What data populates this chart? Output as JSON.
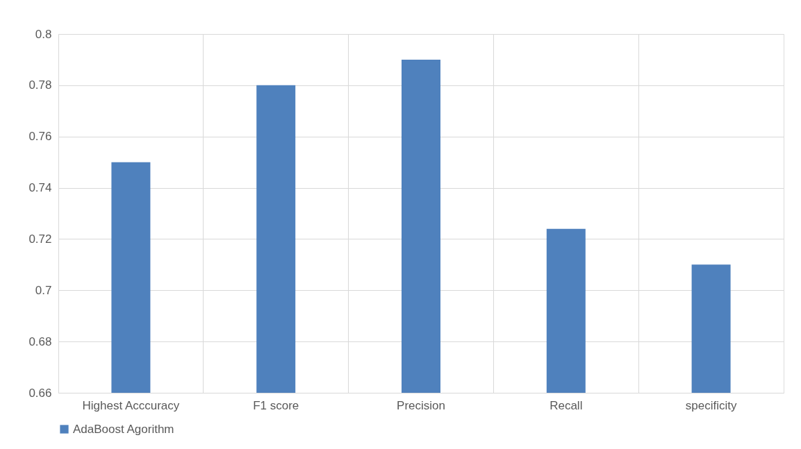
{
  "chart_data": {
    "type": "bar",
    "categories": [
      "Highest Acccuracy",
      "F1 score",
      "Precision",
      "Recall",
      "specificity"
    ],
    "series": [
      {
        "name": "AdaBoost Agorithm",
        "color": "#4f81bd",
        "values": [
          0.75,
          0.78,
          0.79,
          0.724,
          0.71
        ]
      }
    ],
    "ylim": [
      0.66,
      0.8
    ],
    "yticks": [
      0.66,
      0.68,
      {
        "value": 0.7,
        "label": "0.7"
      },
      0.72,
      0.74,
      0.76,
      0.78,
      {
        "value": 0.8,
        "label": "0.8"
      }
    ],
    "grid": true,
    "legend": "bottom"
  }
}
